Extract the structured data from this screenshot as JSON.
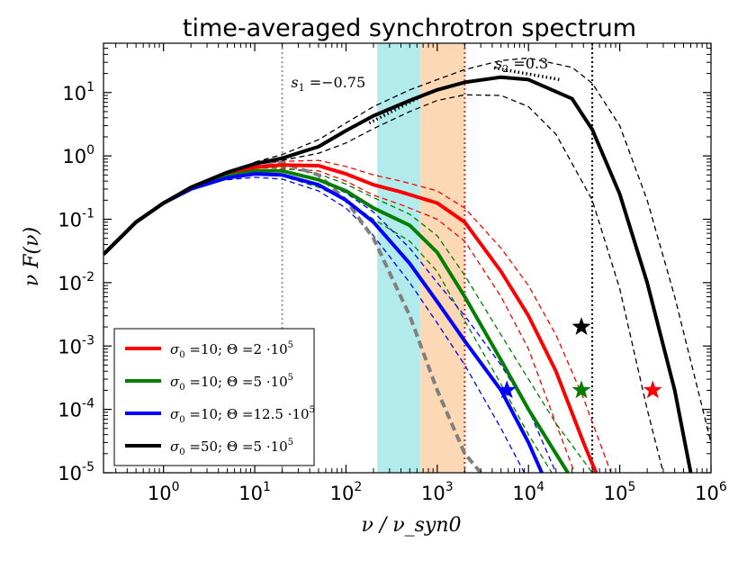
{
  "chart_data": {
    "type": "line",
    "title": "time-averaged synchrotron spectrum",
    "xlabel": "ν / ν_syn0",
    "ylabel": "ν F(ν)",
    "xscale": "log",
    "yscale": "log",
    "xlim": [
      0.22,
      1000000
    ],
    "ylim": [
      1e-05,
      60
    ],
    "x_ticks": [
      {
        "v": 1,
        "base": "10",
        "exp": "0"
      },
      {
        "v": 10,
        "base": "10",
        "exp": "1"
      },
      {
        "v": 100,
        "base": "10",
        "exp": "2"
      },
      {
        "v": 1000,
        "base": "10",
        "exp": "3"
      },
      {
        "v": 10000,
        "base": "10",
        "exp": "4"
      },
      {
        "v": 100000,
        "base": "10",
        "exp": "5"
      },
      {
        "v": 1000000,
        "base": "10",
        "exp": "6"
      }
    ],
    "y_ticks": [
      {
        "v": 10,
        "base": "10",
        "exp": "1"
      },
      {
        "v": 1,
        "base": "10",
        "exp": "0"
      },
      {
        "v": 0.1,
        "base": "10",
        "exp": "-1"
      },
      {
        "v": 0.01,
        "base": "10",
        "exp": "-2"
      },
      {
        "v": 0.001,
        "base": "10",
        "exp": "-3"
      },
      {
        "v": 0.0001,
        "base": "10",
        "exp": "-4"
      },
      {
        "v": 1e-05,
        "base": "10",
        "exp": "-5"
      }
    ],
    "bands": [
      {
        "name": "cyan band",
        "x0": 220,
        "x1": 650,
        "color": "#b2ebeb"
      },
      {
        "name": "orange band",
        "x0": 650,
        "x1": 2000,
        "color": "#fcd8b4"
      }
    ],
    "vlines": [
      {
        "x": 20,
        "color": "#999999"
      },
      {
        "x": 2000,
        "color": "#d63030"
      },
      {
        "x": 50000,
        "color": "#000000"
      }
    ],
    "series": [
      {
        "name": "σ₀ = 10; Θ = 2·10⁵",
        "label_prefix": "σ",
        "label_sub": "0",
        "label_body": " =10; Θ =2 ·10",
        "label_sup": "5",
        "color": "#ff0000",
        "style": "solid",
        "x": [
          0.22,
          0.5,
          1,
          2,
          5,
          10,
          20,
          50,
          100,
          200,
          400,
          1000,
          2000,
          5000,
          10000,
          20000,
          40000,
          55000
        ],
        "y": [
          0.028,
          0.09,
          0.18,
          0.3,
          0.5,
          0.66,
          0.72,
          0.7,
          0.52,
          0.35,
          0.27,
          0.18,
          0.09,
          0.015,
          0.003,
          0.0004,
          3e-05,
          1e-05
        ]
      },
      {
        "name": "σ₀ = 10; Θ = 5·10⁵",
        "label_prefix": "σ",
        "label_sub": "0",
        "label_body": " =10; Θ =5 ·10",
        "label_sup": "5",
        "color": "#007f00",
        "style": "solid",
        "x": [
          0.22,
          0.5,
          1,
          2,
          5,
          10,
          20,
          50,
          100,
          200,
          500,
          1000,
          2000,
          5000,
          10000,
          20000,
          27000
        ],
        "y": [
          0.028,
          0.09,
          0.18,
          0.3,
          0.48,
          0.58,
          0.58,
          0.42,
          0.28,
          0.15,
          0.08,
          0.03,
          0.006,
          0.0006,
          0.0001,
          2e-05,
          1e-05
        ]
      },
      {
        "name": "σ₀ = 10; Θ = 12.5·10⁵",
        "label_prefix": "σ",
        "label_sub": "0",
        "label_body": " =10; Θ =12.5 ·10",
        "label_sup": "5",
        "color": "#0000ff",
        "style": "solid",
        "x": [
          0.22,
          0.5,
          1,
          2,
          5,
          10,
          20,
          50,
          100,
          200,
          500,
          1000,
          2000,
          5000,
          10000,
          14000
        ],
        "y": [
          0.028,
          0.09,
          0.18,
          0.3,
          0.45,
          0.52,
          0.5,
          0.35,
          0.2,
          0.09,
          0.02,
          0.005,
          0.0012,
          0.0002,
          3e-05,
          1e-05
        ]
      },
      {
        "name": "σ₀ = 50; Θ = 5·10⁵",
        "label_prefix": "σ",
        "label_sub": "0",
        "label_body": " =50; Θ =5 ·10",
        "label_sup": "5",
        "color": "#000000",
        "style": "solid",
        "x": [
          0.22,
          0.5,
          1,
          2,
          5,
          10,
          20,
          50,
          100,
          200,
          500,
          1000,
          2000,
          5000,
          10000,
          30000,
          50000,
          100000,
          200000,
          400000,
          600000
        ],
        "y": [
          0.028,
          0.09,
          0.18,
          0.32,
          0.55,
          0.75,
          0.92,
          1.4,
          2.5,
          4.3,
          7.5,
          11,
          14.5,
          17.5,
          16,
          8,
          2.6,
          0.25,
          0.01,
          0.0002,
          1e-05
        ]
      }
    ],
    "dashed_curves": [
      {
        "name": "red dashed upper",
        "color": "#ff0000",
        "x": [
          5,
          10,
          20,
          50,
          100,
          200,
          400,
          1000,
          2000,
          5000,
          10000,
          20000,
          40000,
          80000
        ],
        "y": [
          0.55,
          0.72,
          0.82,
          0.85,
          0.68,
          0.5,
          0.4,
          0.28,
          0.15,
          0.035,
          0.009,
          0.0015,
          0.00015,
          1e-05
        ]
      },
      {
        "name": "red dashed lower",
        "color": "#ff0000",
        "x": [
          5,
          10,
          20,
          50,
          100,
          200,
          400,
          1000,
          2000,
          5000,
          10000,
          20000,
          32000
        ],
        "y": [
          0.45,
          0.6,
          0.62,
          0.58,
          0.4,
          0.24,
          0.17,
          0.1,
          0.045,
          0.006,
          0.0009,
          6e-05,
          1e-05
        ]
      },
      {
        "name": "green dashed upper",
        "color": "#007f00",
        "x": [
          5,
          10,
          20,
          50,
          100,
          200,
          500,
          1000,
          2000,
          5000,
          10000,
          20000,
          50000
        ],
        "y": [
          0.52,
          0.64,
          0.66,
          0.52,
          0.36,
          0.22,
          0.12,
          0.055,
          0.013,
          0.0015,
          0.0003,
          6e-05,
          1e-05
        ]
      },
      {
        "name": "green dashed lower",
        "color": "#007f00",
        "x": [
          5,
          10,
          20,
          50,
          100,
          200,
          500,
          1000,
          2000,
          5000,
          10000,
          18000
        ],
        "y": [
          0.44,
          0.52,
          0.48,
          0.32,
          0.2,
          0.1,
          0.045,
          0.015,
          0.0025,
          0.00025,
          4e-05,
          1e-05
        ]
      },
      {
        "name": "blue dashed upper",
        "color": "#0000ff",
        "x": [
          5,
          10,
          20,
          50,
          100,
          200,
          500,
          1000,
          2000,
          5000,
          10000,
          20000
        ],
        "y": [
          0.5,
          0.58,
          0.57,
          0.42,
          0.26,
          0.13,
          0.035,
          0.01,
          0.003,
          0.0005,
          0.0001,
          1e-05
        ]
      },
      {
        "name": "blue dashed lower",
        "color": "#0000ff",
        "x": [
          5,
          10,
          20,
          50,
          100,
          200,
          500,
          1000,
          2000,
          5000,
          9000
        ],
        "y": [
          0.42,
          0.46,
          0.43,
          0.28,
          0.15,
          0.055,
          0.01,
          0.0023,
          0.0005,
          5e-05,
          1e-05
        ]
      },
      {
        "name": "black dashed upper",
        "color": "#000000",
        "x": [
          10,
          20,
          50,
          100,
          200,
          500,
          1000,
          2000,
          5000,
          10000,
          30000,
          50000,
          100000,
          200000,
          400000,
          1000000
        ],
        "y": [
          0.8,
          1.05,
          1.8,
          3.3,
          6,
          11,
          16,
          23,
          32,
          35,
          25,
          14,
          3,
          0.2,
          0.006,
          3e-05
        ]
      },
      {
        "name": "black dashed lower",
        "color": "#000000",
        "x": [
          10,
          20,
          50,
          100,
          200,
          500,
          1000,
          2000,
          5000,
          10000,
          20000,
          50000,
          100000,
          200000,
          300000
        ],
        "y": [
          0.75,
          0.85,
          1.1,
          1.6,
          2.7,
          5,
          7.5,
          9.2,
          9,
          6,
          2.2,
          0.2,
          0.008,
          0.0001,
          1e-05
        ]
      },
      {
        "name": "grey thick dashed",
        "color": "#808080",
        "width": 4,
        "x": [
          0.22,
          0.5,
          1,
          2,
          5,
          10,
          20,
          50,
          100,
          200,
          500,
          1000,
          2000,
          3000
        ],
        "y": [
          0.028,
          0.09,
          0.18,
          0.3,
          0.55,
          0.75,
          0.78,
          0.5,
          0.2,
          0.05,
          0.003,
          0.0002,
          2e-05,
          1e-05
        ]
      }
    ],
    "dotted_slopes": [
      {
        "name": "slope s1 dotted",
        "x": [
          180,
          650
        ],
        "y": [
          3.3,
          8.5
        ]
      },
      {
        "name": "slope s2 dotted",
        "x": [
          4200,
          22000
        ],
        "y": [
          24.5,
          16
        ]
      }
    ],
    "stars": [
      {
        "name": "blue star",
        "x": 5800,
        "y": 0.0002,
        "color": "#0000ff"
      },
      {
        "name": "green star",
        "x": 38000,
        "y": 0.0002,
        "color": "#007f00"
      },
      {
        "name": "black star",
        "x": 38000,
        "y": 0.002,
        "color": "#000000"
      },
      {
        "name": "red star",
        "x": 230000,
        "y": 0.0002,
        "color": "#ff0000"
      }
    ],
    "annotations": [
      {
        "name": "s1-annotation",
        "s": "s",
        "sub": "1",
        "rest": " =−0.75",
        "x": 25,
        "y": 12
      },
      {
        "name": "s2-annotation",
        "s": "s",
        "sub": "2",
        "rest": " =0.3",
        "x": 4300,
        "y": 24
      }
    ],
    "legend_position": "lower-left"
  }
}
